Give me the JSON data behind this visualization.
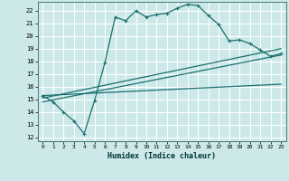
{
  "xlabel": "Humidex (Indice chaleur)",
  "background_color": "#cce8e8",
  "line_color": "#1a7070",
  "grid_color": "#ffffff",
  "xlim": [
    -0.5,
    23.5
  ],
  "ylim": [
    11.7,
    22.7
  ],
  "xticks": [
    0,
    1,
    2,
    3,
    4,
    5,
    6,
    7,
    8,
    9,
    10,
    11,
    12,
    13,
    14,
    15,
    16,
    17,
    18,
    19,
    20,
    21,
    22,
    23
  ],
  "yticks": [
    12,
    13,
    14,
    15,
    16,
    17,
    18,
    19,
    20,
    21,
    22
  ],
  "curve1_x": [
    0,
    1,
    2,
    3,
    4,
    5,
    6,
    7,
    8,
    9,
    10,
    11,
    12,
    13,
    14,
    15,
    16,
    17,
    18,
    19,
    20,
    21,
    22,
    23
  ],
  "curve1_y": [
    15.3,
    14.8,
    14.0,
    13.3,
    12.3,
    14.9,
    17.9,
    21.5,
    21.2,
    22.0,
    21.5,
    21.7,
    21.8,
    22.2,
    22.5,
    22.4,
    21.6,
    20.9,
    19.6,
    19.7,
    19.4,
    18.9,
    18.4,
    18.6
  ],
  "curve2_x": [
    0,
    23
  ],
  "curve2_y": [
    14.8,
    18.5
  ],
  "curve3_x": [
    0,
    23
  ],
  "curve3_y": [
    15.1,
    19.0
  ],
  "curve4_x": [
    0,
    23
  ],
  "curve4_y": [
    15.3,
    16.2
  ]
}
